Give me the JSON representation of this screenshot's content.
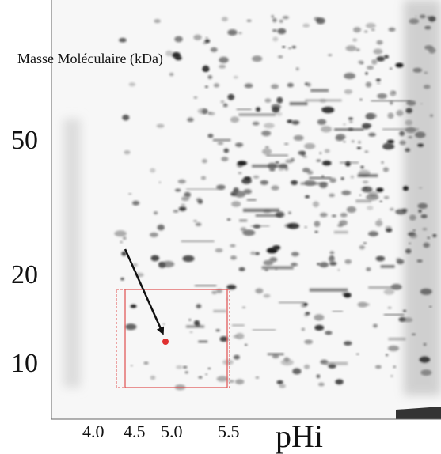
{
  "figure": {
    "y_axis_title": "Masse Moléculaire (kDa)",
    "y_labels": [
      "50",
      "20",
      "10"
    ],
    "x_labels": [
      "4.0",
      "4.5",
      "5.0",
      "5.5"
    ],
    "x_axis_title": "pHi"
  }
}
